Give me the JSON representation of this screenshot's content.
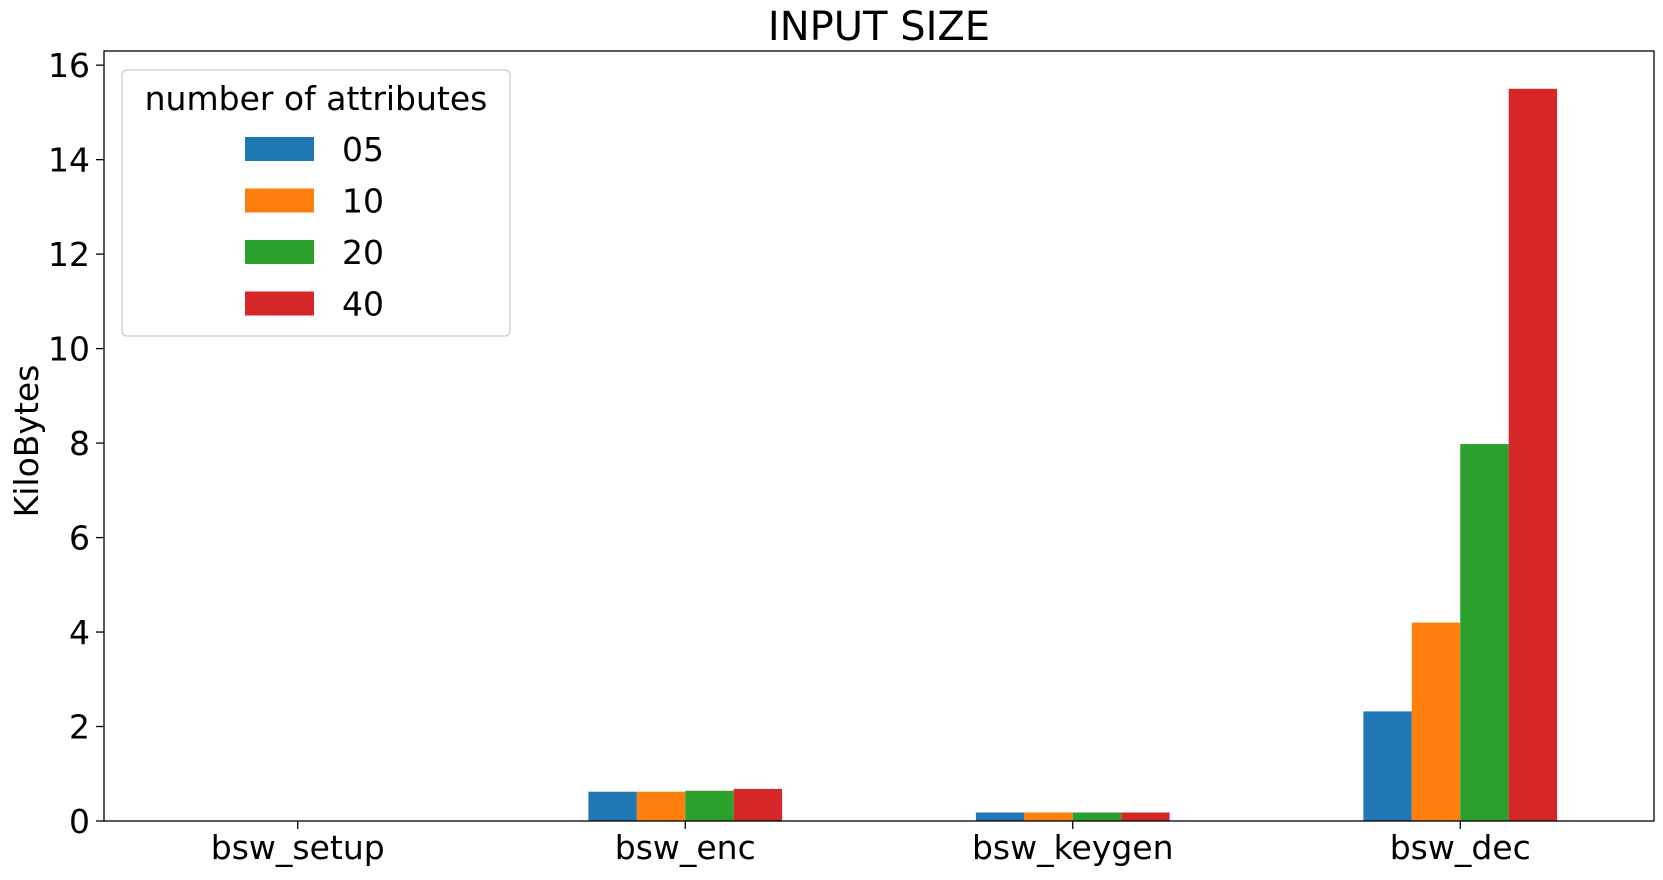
{
  "chart_data": {
    "type": "bar",
    "title": "INPUT SIZE",
    "xlabel": "",
    "ylabel": "KiloBytes",
    "categories": [
      "bsw_setup",
      "bsw_enc",
      "bsw_keygen",
      "bsw_dec"
    ],
    "series": [
      {
        "name": "05",
        "color": "#1f77b4",
        "values": [
          0.0,
          0.62,
          0.18,
          2.32
        ]
      },
      {
        "name": "10",
        "color": "#ff7f0e",
        "values": [
          0.0,
          0.62,
          0.18,
          4.2
        ]
      },
      {
        "name": "20",
        "color": "#2ca02c",
        "values": [
          0.0,
          0.64,
          0.18,
          7.98
        ]
      },
      {
        "name": "40",
        "color": "#d62728",
        "values": [
          0.0,
          0.68,
          0.18,
          15.5
        ]
      }
    ],
    "ylim": [
      0,
      16.3
    ],
    "yticks": [
      0,
      2,
      4,
      6,
      8,
      10,
      12,
      14,
      16
    ],
    "legend": {
      "title": "number of attributes",
      "placement": "top-left"
    },
    "grid": false
  }
}
